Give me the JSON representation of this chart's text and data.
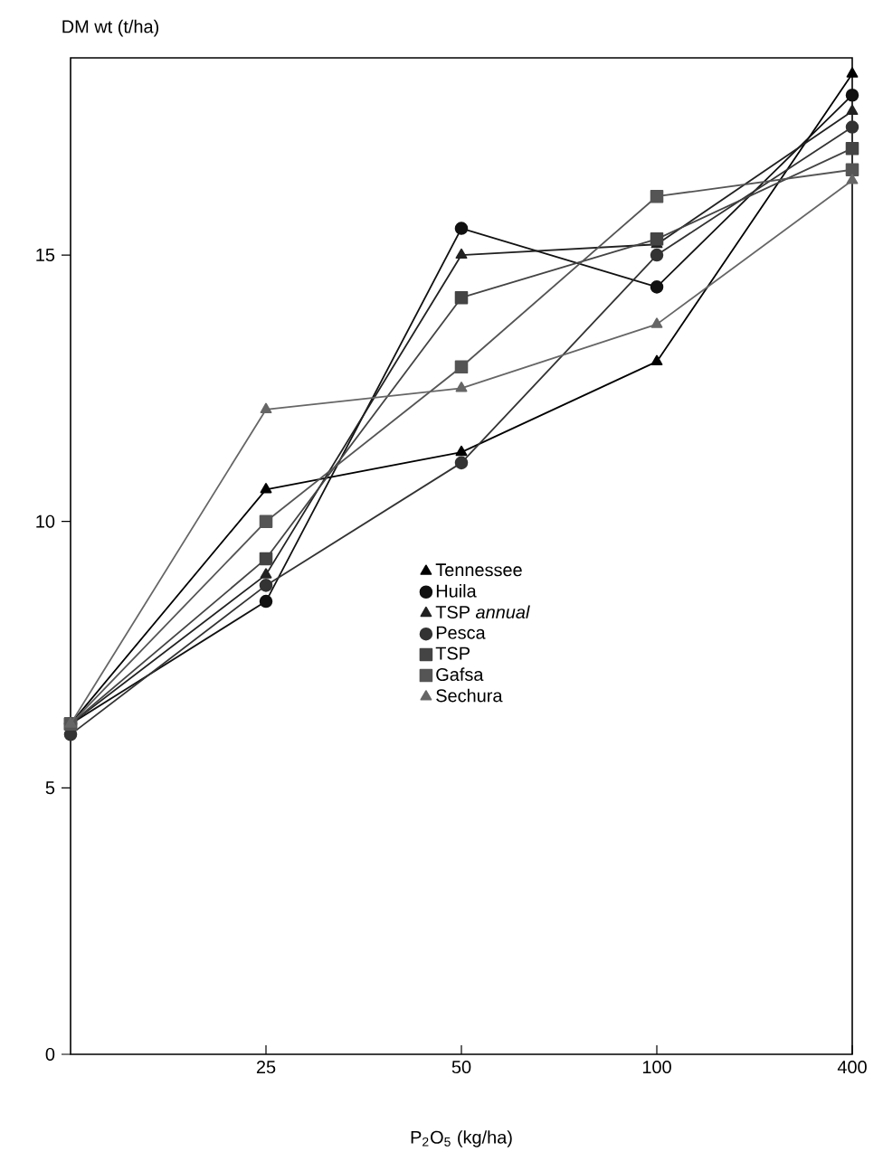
{
  "chart_data": {
    "type": "line",
    "xlabel": "P$_{2}$O$_{5}$ (kg/ha)",
    "ylabel": "DM wt (t/ha)",
    "categories": [
      null,
      "25",
      "50",
      "100",
      "400"
    ],
    "ylim": [
      0,
      18.7
    ],
    "yticks": [
      0,
      5,
      10,
      15
    ],
    "legend": "center",
    "grid": false,
    "series": [
      {
        "name": "Tennessee",
        "color": "#000000",
        "marker": "triangle",
        "values": [
          6.2,
          10.6,
          11.3,
          13.0,
          18.4
        ]
      },
      {
        "name": "Huila",
        "color": "#111111",
        "marker": "circle",
        "values": [
          6.2,
          8.5,
          15.5,
          14.4,
          18.0
        ]
      },
      {
        "name": "TSP *annual*",
        "color": "#222222",
        "marker": "triangle",
        "values": [
          6.2,
          9.0,
          15.0,
          15.2,
          17.7
        ]
      },
      {
        "name": "Pesca",
        "color": "#333333",
        "marker": "circle",
        "values": [
          6.0,
          8.8,
          11.1,
          15.0,
          17.4
        ]
      },
      {
        "name": "TSP",
        "color": "#444444",
        "marker": "square",
        "values": [
          6.2,
          9.3,
          14.2,
          15.3,
          17.0
        ]
      },
      {
        "name": "Gafsa",
        "color": "#555555",
        "marker": "square",
        "values": [
          6.2,
          10.0,
          12.9,
          16.1,
          16.6
        ]
      },
      {
        "name": "Sechura",
        "color": "#666666",
        "marker": "triangle",
        "values": [
          6.2,
          12.1,
          12.5,
          13.7,
          16.4
        ]
      }
    ]
  }
}
